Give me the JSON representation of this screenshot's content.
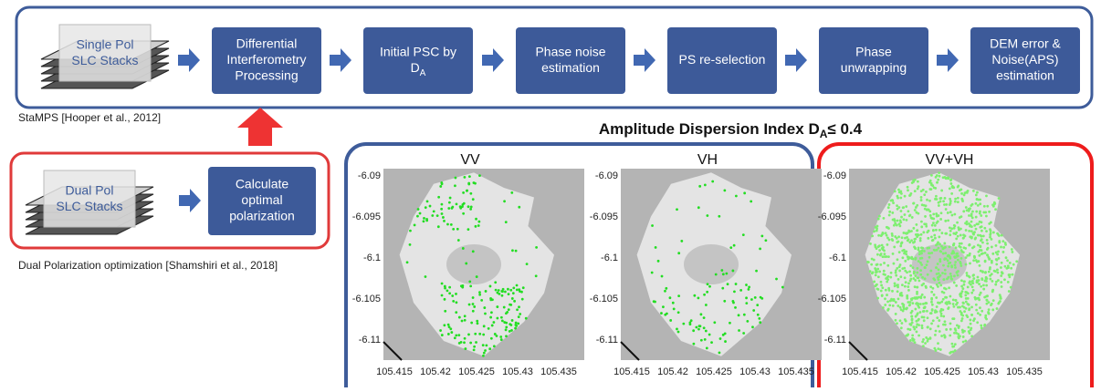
{
  "workflow": {
    "input": [
      "Single Pol",
      "SLC Stacks"
    ],
    "steps": [
      {
        "lines": [
          "Differential",
          "Interferometry",
          "Processing"
        ]
      },
      {
        "lines": [
          "Initial PSC by",
          "D"
        ],
        "sub": "A"
      },
      {
        "lines": [
          "Phase noise",
          "estimation"
        ]
      },
      {
        "lines": [
          "PS re-selection"
        ]
      },
      {
        "lines": [
          "Phase",
          "unwrapping"
        ]
      },
      {
        "lines": [
          "DEM error &",
          "Noise(APS)",
          "estimation"
        ]
      }
    ],
    "caption": "StaMPS [Hooper et al., 2012]"
  },
  "optimization": {
    "input": [
      "Dual Pol",
      "SLC Stacks"
    ],
    "step": [
      "Calculate",
      "optimal",
      "polarization"
    ],
    "caption": "Dual Polarization optimization [Shamshiri et al., 2018]"
  },
  "results": {
    "title": {
      "text": "Amplitude Dispersion Index  D",
      "sub": "A",
      "after": "≤ 0.4"
    },
    "panels": [
      {
        "label": "VV"
      },
      {
        "label": "VH"
      },
      {
        "label": "VV+VH"
      }
    ],
    "yticks": [
      "-6.09",
      "-6.095",
      "-6.1",
      "-6.105",
      "-6.11"
    ],
    "xticks": [
      "105.415",
      "105.42",
      "105.425",
      "105.43",
      "105.435"
    ]
  }
}
